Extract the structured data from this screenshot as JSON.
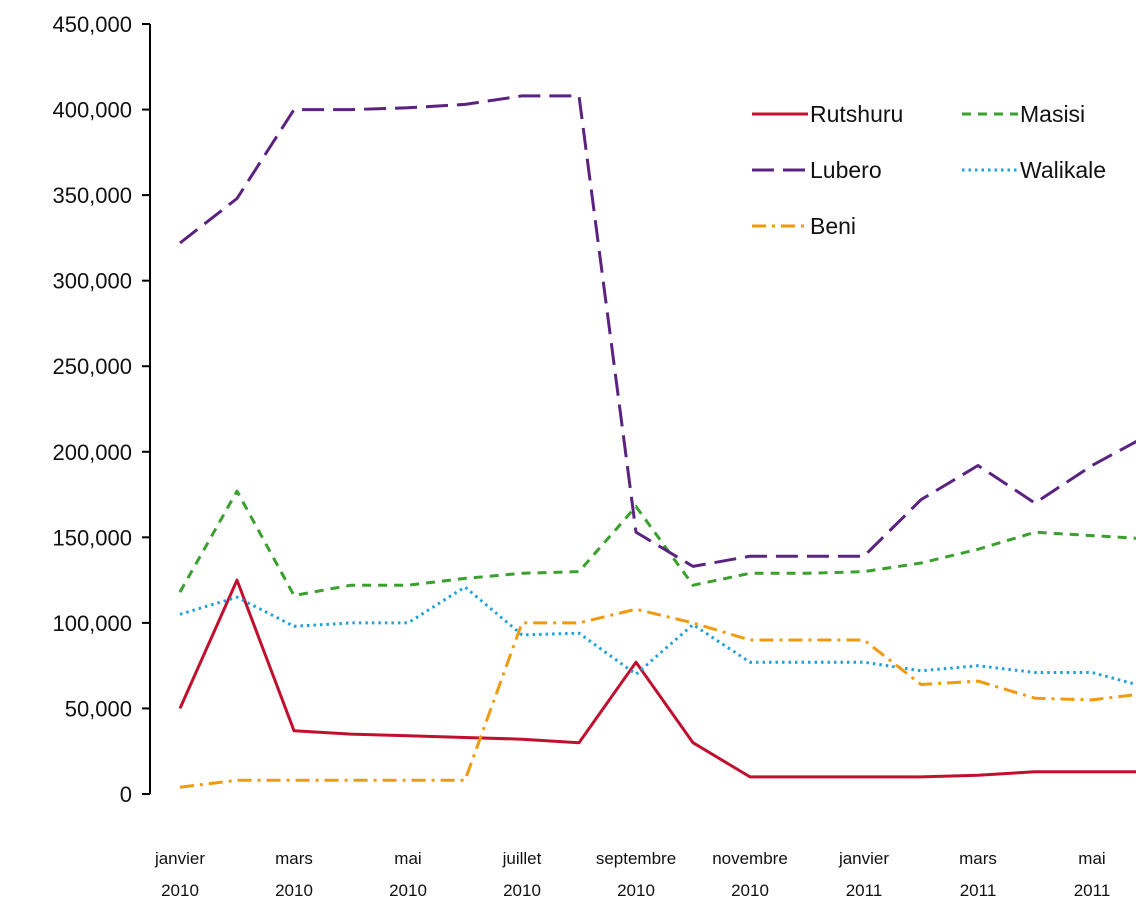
{
  "chart_data": {
    "type": "line",
    "title": "",
    "xlabel": "",
    "ylabel": "",
    "ylim": [
      0,
      450000
    ],
    "y_ticks": [
      "0",
      "50,000",
      "100,000",
      "150,000",
      "200,000",
      "250,000",
      "300,000",
      "350,000",
      "400,000",
      "450,000"
    ],
    "x_count": 18,
    "x_tick_labels": [
      {
        "index": 0,
        "line1": "janvier",
        "line2": "2010"
      },
      {
        "index": 2,
        "line1": "mars",
        "line2": "2010"
      },
      {
        "index": 4,
        "line1": "mai",
        "line2": "2010"
      },
      {
        "index": 6,
        "line1": "juillet",
        "line2": "2010"
      },
      {
        "index": 8,
        "line1": "septembre",
        "line2": "2010"
      },
      {
        "index": 10,
        "line1": "novembre",
        "line2": "2010"
      },
      {
        "index": 12,
        "line1": "janvier",
        "line2": "2011"
      },
      {
        "index": 14,
        "line1": "mars",
        "line2": "2011"
      },
      {
        "index": 16,
        "line1": "mai",
        "line2": "2011"
      }
    ],
    "grid": false,
    "legend_position": "top-right",
    "series": [
      {
        "name": "Rutshuru",
        "color": "#c0102e",
        "style": "solid",
        "values": [
          50000,
          125000,
          37000,
          35000,
          34000,
          33000,
          32000,
          30000,
          77000,
          30000,
          10000,
          10000,
          10000,
          10000,
          11000,
          13000,
          13000,
          13000
        ]
      },
      {
        "name": "Masisi",
        "color": "#3aa02e",
        "style": "dash",
        "values": [
          118000,
          177000,
          116000,
          122000,
          122000,
          126000,
          129000,
          130000,
          168000,
          122000,
          129000,
          129000,
          130000,
          135000,
          143000,
          153000,
          151000,
          149000
        ]
      },
      {
        "name": "Lubero",
        "color": "#5b2380",
        "style": "longdash",
        "values": [
          322000,
          348000,
          400000,
          400000,
          401000,
          403000,
          408000,
          408000,
          153000,
          133000,
          139000,
          139000,
          139000,
          172000,
          192000,
          170000,
          192000,
          210000
        ]
      },
      {
        "name": "Walikale",
        "color": "#1ea0d8",
        "style": "dot",
        "values": [
          105000,
          115000,
          98000,
          100000,
          100000,
          121000,
          93000,
          94000,
          70000,
          99000,
          77000,
          77000,
          77000,
          72000,
          75000,
          71000,
          71000,
          62000
        ]
      },
      {
        "name": "Beni",
        "color": "#f09a10",
        "style": "dashdot",
        "values": [
          4000,
          8000,
          8000,
          8000,
          8000,
          8000,
          100000,
          100000,
          108000,
          100000,
          90000,
          90000,
          90000,
          64000,
          66000,
          56000,
          55000,
          59000
        ]
      }
    ]
  }
}
